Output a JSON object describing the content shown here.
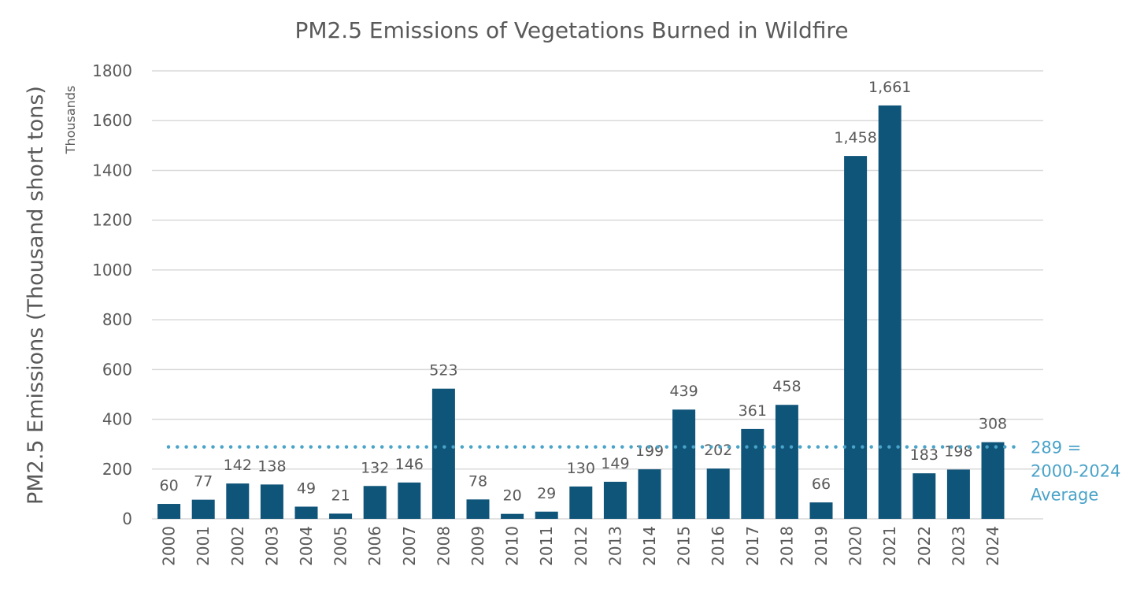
{
  "chart_data": {
    "type": "bar",
    "title": "PM2.5 Emissions of Vegetations Burned in Wildfire",
    "xlabel": "",
    "ylabel": "PM2.5 Emissions (Thousand short tons)",
    "y_units_label": "Thousands",
    "ylim": [
      0,
      1800
    ],
    "yticks": [
      0,
      200,
      400,
      600,
      800,
      1000,
      1200,
      1400,
      1600,
      1800
    ],
    "grid": true,
    "categories": [
      "2000",
      "2001",
      "2002",
      "2003",
      "2004",
      "2005",
      "2006",
      "2007",
      "2008",
      "2009",
      "2010",
      "2011",
      "2012",
      "2013",
      "2014",
      "2015",
      "2016",
      "2017",
      "2018",
      "2019",
      "2020",
      "2021",
      "2022",
      "2023",
      "2024"
    ],
    "values": [
      60,
      77,
      142,
      138,
      49,
      21,
      132,
      146,
      523,
      78,
      20,
      29,
      130,
      149,
      199,
      439,
      202,
      361,
      458,
      66,
      1458,
      1661,
      183,
      198,
      308
    ],
    "data_labels": [
      "60",
      "77",
      "142",
      "138",
      "49",
      "21",
      "132",
      "146",
      "523",
      "78",
      "20",
      "29",
      "130",
      "149",
      "199",
      "439",
      "202",
      "361",
      "458",
      "66",
      "1,458",
      "1,661",
      "183",
      "198",
      "308"
    ],
    "reference_line": {
      "value": 289,
      "style": "dotted",
      "label_lines": [
        "289 =",
        "2000-2024",
        "Average"
      ]
    },
    "colors": {
      "bar": "#0f5479",
      "average_line": "#4aa3c8",
      "grid": "#d9d9d9",
      "text": "#595959"
    }
  }
}
